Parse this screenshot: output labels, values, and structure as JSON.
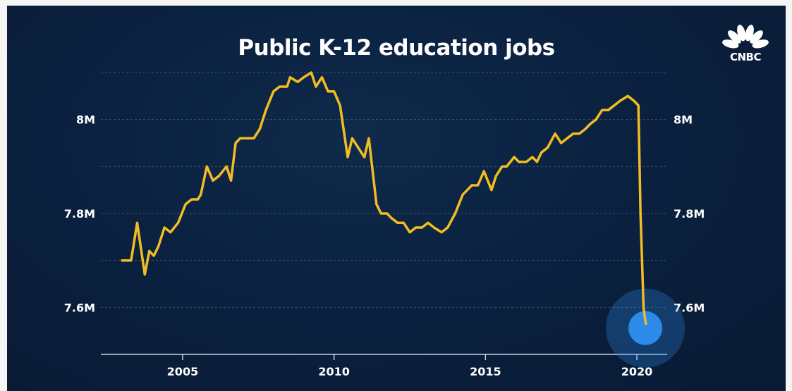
{
  "brand": {
    "name": "CNBC"
  },
  "colors": {
    "line": "#f2bd24",
    "highlight": "#2d8ff0",
    "text": "#ffffff"
  },
  "chart_data": {
    "type": "line",
    "title": "Public K-12 education jobs",
    "xlabel": "",
    "ylabel": "",
    "xlim": [
      2002.3,
      2021.0
    ],
    "ylim": [
      7.5,
      8.1
    ],
    "grid": true,
    "x_ticks": [
      2005,
      2010,
      2015,
      2020
    ],
    "x_tick_labels": [
      "2005",
      "2010",
      "2015",
      "2020"
    ],
    "y_ticks": [
      7.6,
      7.8,
      8.0
    ],
    "y_tick_labels": [
      "7.6M",
      "7.8M",
      "8M"
    ],
    "series": [
      {
        "name": "Public K-12 education jobs",
        "x": [
          2003.0,
          2003.15,
          2003.3,
          2003.5,
          2003.75,
          2003.9,
          2004.05,
          2004.2,
          2004.4,
          2004.6,
          2004.85,
          2005.1,
          2005.3,
          2005.5,
          2005.6,
          2005.8,
          2006.0,
          2006.2,
          2006.45,
          2006.6,
          2006.75,
          2006.9,
          2007.1,
          2007.35,
          2007.55,
          2007.75,
          2008.0,
          2008.2,
          2008.45,
          2008.55,
          2008.8,
          2009.0,
          2009.25,
          2009.4,
          2009.6,
          2009.8,
          2010.0,
          2010.2,
          2010.45,
          2010.6,
          2010.8,
          2011.0,
          2011.15,
          2011.4,
          2011.55,
          2011.75,
          2011.9,
          2012.1,
          2012.3,
          2012.5,
          2012.7,
          2012.9,
          2013.1,
          2013.3,
          2013.55,
          2013.75,
          2014.0,
          2014.25,
          2014.4,
          2014.55,
          2014.75,
          2014.95,
          2015.2,
          2015.35,
          2015.55,
          2015.7,
          2015.95,
          2016.1,
          2016.35,
          2016.55,
          2016.7,
          2016.85,
          2017.05,
          2017.3,
          2017.5,
          2017.7,
          2017.9,
          2018.1,
          2018.3,
          2018.45,
          2018.65,
          2018.85,
          2019.05,
          2019.25,
          2019.45,
          2019.7,
          2019.9,
          2020.05,
          2020.12,
          2020.22,
          2020.26,
          2020.28,
          2020.3
        ],
        "values": [
          7.7,
          7.7,
          7.7,
          7.78,
          7.67,
          7.72,
          7.71,
          7.73,
          7.77,
          7.76,
          7.78,
          7.82,
          7.83,
          7.83,
          7.84,
          7.9,
          7.87,
          7.88,
          7.9,
          7.87,
          7.95,
          7.96,
          7.96,
          7.96,
          7.98,
          8.02,
          8.06,
          8.07,
          8.07,
          8.09,
          8.08,
          8.09,
          8.1,
          8.07,
          8.09,
          8.06,
          8.06,
          8.03,
          7.92,
          7.96,
          7.94,
          7.92,
          7.96,
          7.82,
          7.8,
          7.8,
          7.79,
          7.78,
          7.78,
          7.76,
          7.77,
          7.77,
          7.78,
          7.77,
          7.76,
          7.77,
          7.8,
          7.84,
          7.85,
          7.86,
          7.86,
          7.89,
          7.85,
          7.88,
          7.9,
          7.9,
          7.92,
          7.91,
          7.91,
          7.92,
          7.91,
          7.93,
          7.94,
          7.97,
          7.95,
          7.96,
          7.97,
          7.97,
          7.98,
          7.99,
          8.0,
          8.02,
          8.02,
          8.03,
          8.04,
          8.05,
          8.04,
          8.03,
          7.8,
          7.6,
          7.58,
          7.57,
          7.565
        ]
      }
    ],
    "annotations": [
      {
        "type": "highlight-circle",
        "x": 2020.28,
        "y": 7.565
      }
    ]
  }
}
